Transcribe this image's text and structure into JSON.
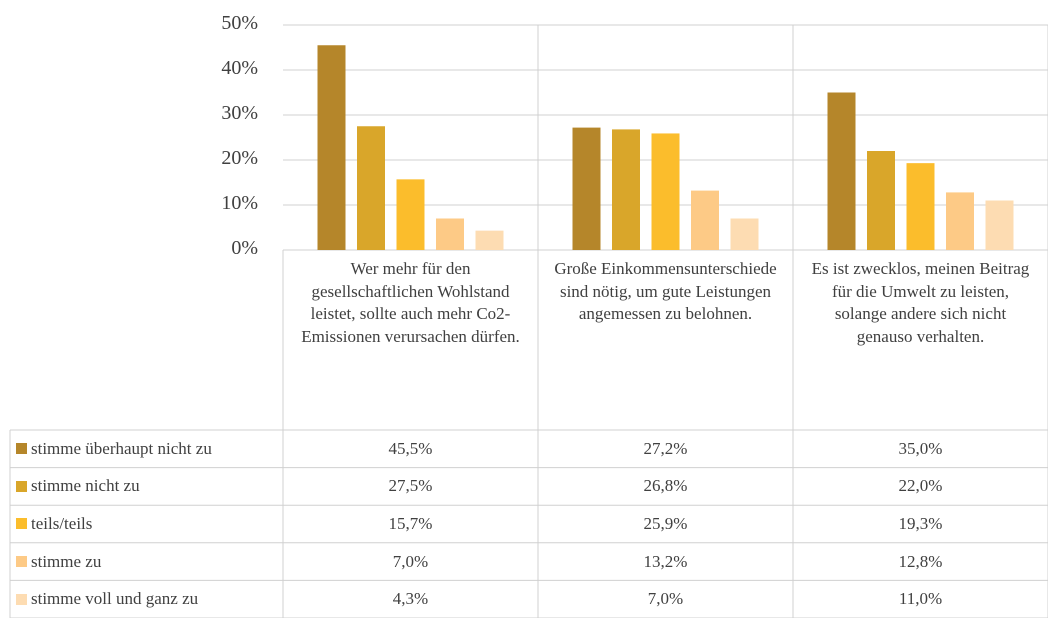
{
  "chart_data": {
    "type": "bar",
    "categories": [
      "Wer mehr für den gesellschaftlichen Wohlstand leistet, sollte auch mehr Co2-Emissionen verursachen dürfen.",
      "Große Einkommensunterschiede sind nötig, um gute Leistungen angemessen zu belohnen.",
      "Es ist zwecklos, meinen Beitrag für die Umwelt zu leisten, solange andere sich nicht genauso verhalten."
    ],
    "series": [
      {
        "name": "stimme überhaupt nicht zu",
        "color": "#b5862a",
        "values": [
          45.5,
          27.2,
          35.0
        ],
        "value_labels": [
          "45,5%",
          "27,2%",
          "35,0%"
        ]
      },
      {
        "name": "stimme nicht zu",
        "color": "#d9a62a",
        "values": [
          27.5,
          26.8,
          22.0
        ],
        "value_labels": [
          "27,5%",
          "26,8%",
          "22,0%"
        ]
      },
      {
        "name": "teils/teils",
        "color": "#fbbd2c",
        "values": [
          15.7,
          25.9,
          19.3
        ],
        "value_labels": [
          "15,7%",
          "25,9%",
          "19,3%"
        ]
      },
      {
        "name": "stimme zu",
        "color": "#fdca86",
        "values": [
          7.0,
          13.2,
          12.8
        ],
        "value_labels": [
          "7,0%",
          "13,2%",
          "12,8%"
        ]
      },
      {
        "name": "stimme voll und ganz zu",
        "color": "#fddcb2",
        "values": [
          4.3,
          7.0,
          11.0
        ],
        "value_labels": [
          "4,3%",
          "7,0%",
          "11,0%"
        ]
      }
    ],
    "ylim": [
      0,
      50
    ],
    "yticks": [
      {
        "value": 0,
        "label": "0%"
      },
      {
        "value": 10,
        "label": "10%"
      },
      {
        "value": 20,
        "label": "20%"
      },
      {
        "value": 30,
        "label": "30%"
      },
      {
        "value": 40,
        "label": "40%"
      },
      {
        "value": 50,
        "label": "50%"
      }
    ],
    "grid": true
  }
}
